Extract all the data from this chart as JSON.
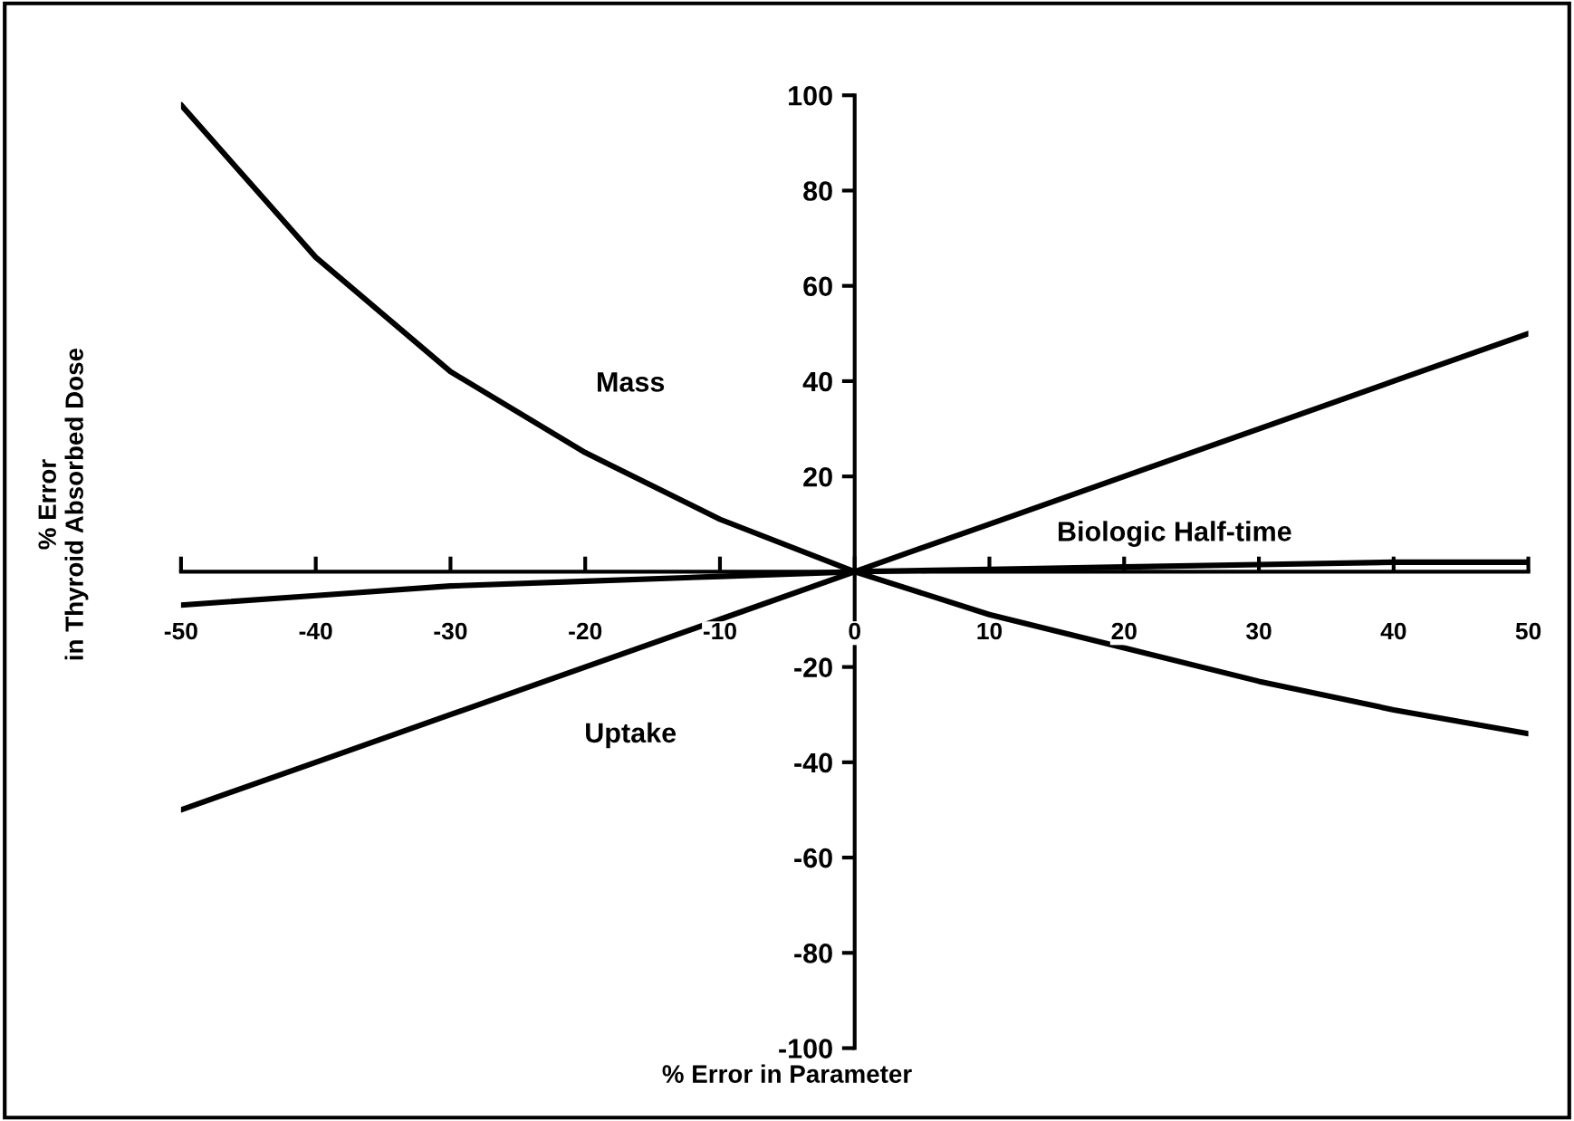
{
  "chart_data": {
    "type": "line",
    "xlabel": "% Error in Parameter",
    "ylabel": "% Error\nin Thyroid Absorbed Dose",
    "x": [
      -50,
      -40,
      -30,
      -20,
      -10,
      0,
      10,
      20,
      30,
      40,
      50
    ],
    "series": [
      {
        "name": "Mass",
        "color": "#000000",
        "values": [
          98,
          66,
          42,
          25,
          11,
          0,
          -9,
          -16,
          -23,
          -29,
          -34
        ]
      },
      {
        "name": "Uptake",
        "color": "#000000",
        "values": [
          -50,
          -40,
          -30,
          -20,
          -10,
          0,
          10,
          20,
          30,
          40,
          50
        ]
      },
      {
        "name": "Biologic Half-time",
        "color": "#000000",
        "values": [
          -7,
          -5,
          -3,
          -2,
          -1,
          0,
          0.5,
          1,
          1.5,
          2,
          2
        ]
      }
    ],
    "xlim": [
      -50,
      50
    ],
    "ylim": [
      -100,
      100
    ],
    "xticks": [
      -50,
      -40,
      -30,
      -20,
      -10,
      0,
      10,
      20,
      30,
      40,
      50
    ],
    "yticks": [
      -100,
      -80,
      -60,
      -40,
      -20,
      {
        "value": 0,
        "label": null
      },
      20,
      40,
      60,
      80,
      100
    ],
    "grid": false,
    "legend": false,
    "marker": "none",
    "line_style": "solid"
  }
}
